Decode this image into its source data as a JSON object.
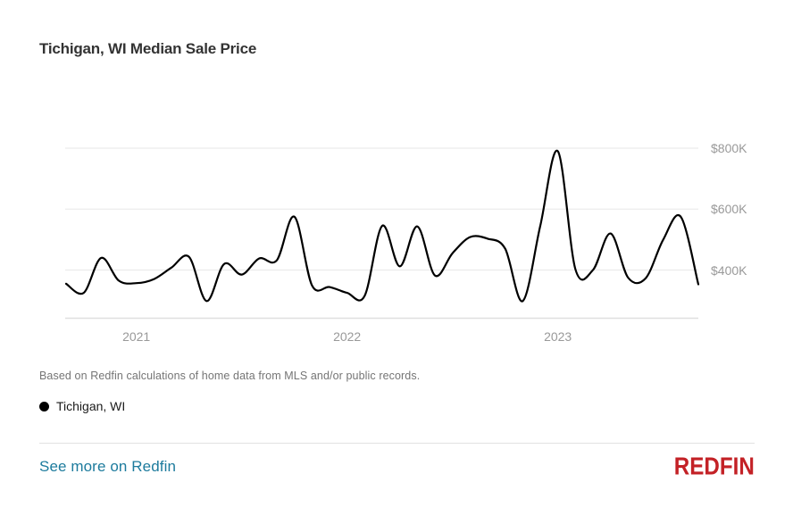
{
  "title": "Tichigan, WI Median Sale Price",
  "footnote": "Based on Redfin calculations of home data from MLS and/or public records.",
  "legend": {
    "marker": "filled-circle-icon",
    "label": "Tichigan, WI",
    "color": "#000000"
  },
  "link": {
    "label": "See more on Redfin",
    "color": "#1d7b9d"
  },
  "logo": {
    "text": "REDFIN",
    "color": "#c32126"
  },
  "chart_data": {
    "type": "line",
    "title": "Tichigan, WI Median Sale Price",
    "grid": "horizontal",
    "y_axis_side": "right",
    "legend_position": "bottom-left",
    "ylim": [
      230000,
      820000
    ],
    "y_ticks": [
      {
        "label": "$400K",
        "value": 400000
      },
      {
        "label": "$600K",
        "value": 600000
      },
      {
        "label": "$800K",
        "value": 800000
      }
    ],
    "x_ticks": [
      {
        "label": "2021",
        "month": "2021-01"
      },
      {
        "label": "2022",
        "month": "2022-01"
      },
      {
        "label": "2023",
        "month": "2023-01"
      }
    ],
    "series": [
      {
        "name": "Tichigan, WI",
        "color": "#000000",
        "x": [
          "2020-09",
          "2020-10",
          "2020-11",
          "2020-12",
          "2021-01",
          "2021-02",
          "2021-03",
          "2021-04",
          "2021-05",
          "2021-06",
          "2021-07",
          "2021-08",
          "2021-09",
          "2021-10",
          "2021-11",
          "2021-12",
          "2022-01",
          "2022-02",
          "2022-03",
          "2022-04",
          "2022-05",
          "2022-06",
          "2022-07",
          "2022-08",
          "2022-09",
          "2022-10",
          "2022-11",
          "2022-12",
          "2023-01",
          "2023-02",
          "2023-03",
          "2023-04",
          "2023-05",
          "2023-06",
          "2023-07",
          "2023-08",
          "2023-09"
        ],
        "values": [
          355000,
          325000,
          440000,
          365000,
          357000,
          370000,
          408000,
          443000,
          298000,
          420000,
          385000,
          438000,
          432000,
          575000,
          350000,
          344000,
          325000,
          315000,
          545000,
          412000,
          543000,
          382000,
          455000,
          508000,
          503000,
          470000,
          298000,
          545000,
          790000,
          403000,
          400000,
          520000,
          375000,
          373000,
          500000,
          575000,
          353000
        ]
      }
    ]
  }
}
